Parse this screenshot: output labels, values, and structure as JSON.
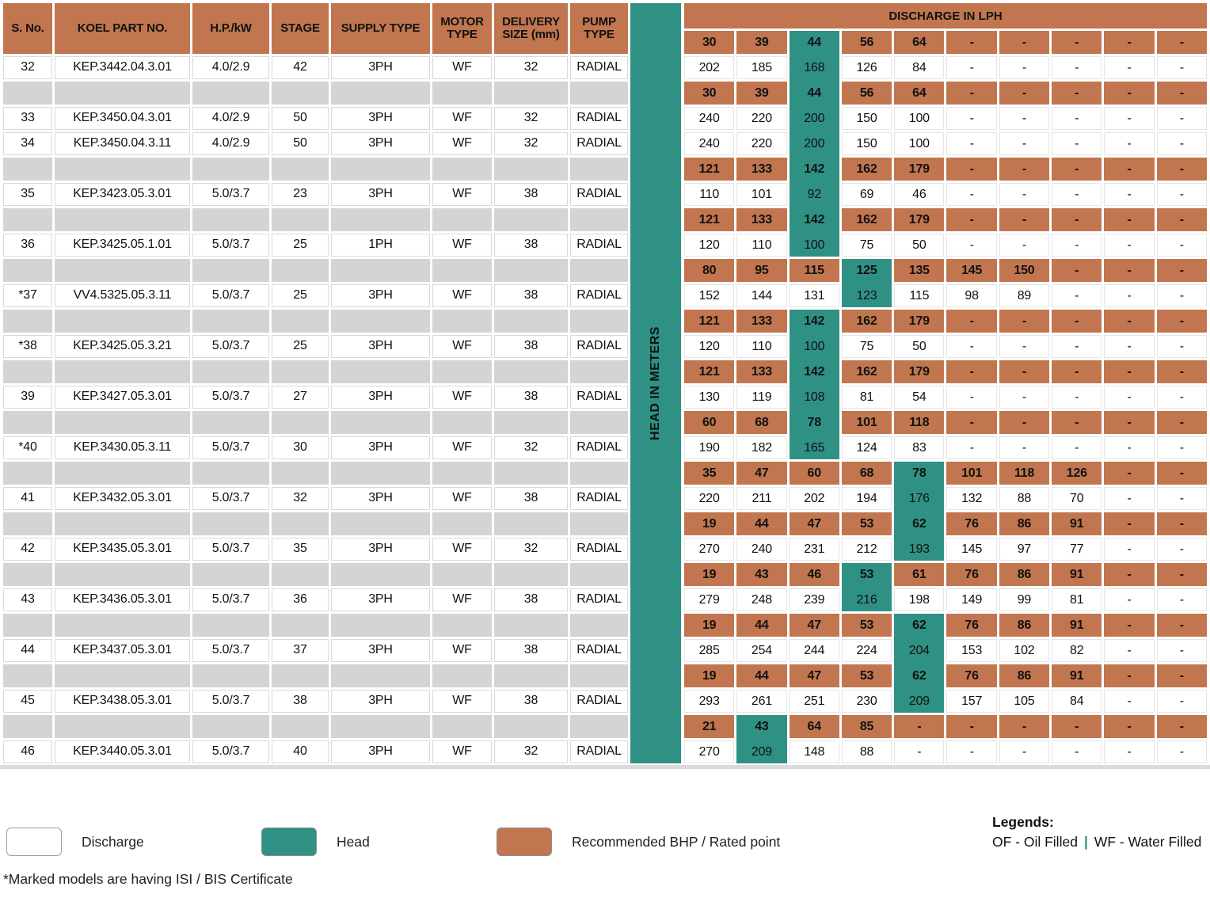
{
  "table": {
    "left_headers": [
      "S. No.",
      "KOEL PART NO.",
      "H.P./kW",
      "STAGE",
      "SUPPLY TYPE",
      "MOTOR TYPE",
      "DELIVERY SIZE (mm)",
      "PUMP TYPE"
    ],
    "discharge_title": "DISCHARGE IN LPH",
    "head_band_label": "HEAD IN METERS",
    "header_head_row": {
      "type": "head",
      "values": [
        "30",
        "39",
        "44",
        "56",
        "64",
        "-",
        "-",
        "-",
        "-",
        "-"
      ],
      "rated": 2
    },
    "rows": [
      {
        "left": {
          "sno": "32",
          "part": "KEP.3442.04.3.01",
          "hp": "4.0/2.9",
          "stage": "42",
          "supply": "3PH",
          "motor": "WF",
          "size": "32",
          "pump": "RADIAL"
        },
        "right": {
          "type": "disc",
          "values": [
            "202",
            "185",
            "168",
            "126",
            "84",
            "-",
            "-",
            "-",
            "-",
            "-"
          ],
          "rated": 2
        }
      },
      {
        "left": null,
        "right": {
          "type": "head",
          "values": [
            "30",
            "39",
            "44",
            "56",
            "64",
            "-",
            "-",
            "-",
            "-",
            "-"
          ],
          "rated": 2
        }
      },
      {
        "left": {
          "sno": "33",
          "part": "KEP.3450.04.3.01",
          "hp": "4.0/2.9",
          "stage": "50",
          "supply": "3PH",
          "motor": "WF",
          "size": "32",
          "pump": "RADIAL"
        },
        "right": {
          "type": "disc",
          "values": [
            "240",
            "220",
            "200",
            "150",
            "100",
            "-",
            "-",
            "-",
            "-",
            "-"
          ],
          "rated": 2
        }
      },
      {
        "left": {
          "sno": "34",
          "part": "KEP.3450.04.3.11",
          "hp": "4.0/2.9",
          "stage": "50",
          "supply": "3PH",
          "motor": "WF",
          "size": "32",
          "pump": "RADIAL"
        },
        "right": {
          "type": "disc",
          "values": [
            "240",
            "220",
            "200",
            "150",
            "100",
            "-",
            "-",
            "-",
            "-",
            "-"
          ],
          "rated": 2
        }
      },
      {
        "left": null,
        "right": {
          "type": "head",
          "values": [
            "121",
            "133",
            "142",
            "162",
            "179",
            "-",
            "-",
            "-",
            "-",
            "-"
          ],
          "rated": 2
        }
      },
      {
        "left": {
          "sno": "35",
          "part": "KEP.3423.05.3.01",
          "hp": "5.0/3.7",
          "stage": "23",
          "supply": "3PH",
          "motor": "WF",
          "size": "38",
          "pump": "RADIAL"
        },
        "right": {
          "type": "disc",
          "values": [
            "110",
            "101",
            "92",
            "69",
            "46",
            "-",
            "-",
            "-",
            "-",
            "-"
          ],
          "rated": 2
        }
      },
      {
        "left": null,
        "right": {
          "type": "head",
          "values": [
            "121",
            "133",
            "142",
            "162",
            "179",
            "-",
            "-",
            "-",
            "-",
            "-"
          ],
          "rated": 2
        }
      },
      {
        "left": {
          "sno": "36",
          "part": "KEP.3425.05.1.01",
          "hp": "5.0/3.7",
          "stage": "25",
          "supply": "1PH",
          "motor": "WF",
          "size": "38",
          "pump": "RADIAL"
        },
        "right": {
          "type": "disc",
          "values": [
            "120",
            "110",
            "100",
            "75",
            "50",
            "-",
            "-",
            "-",
            "-",
            "-"
          ],
          "rated": 2
        }
      },
      {
        "left": null,
        "right": {
          "type": "head",
          "values": [
            "80",
            "95",
            "115",
            "125",
            "135",
            "145",
            "150",
            "-",
            "-",
            "-"
          ],
          "rated": 3
        }
      },
      {
        "left": {
          "sno": "*37",
          "part": "VV4.5325.05.3.11",
          "hp": "5.0/3.7",
          "stage": "25",
          "supply": "3PH",
          "motor": "WF",
          "size": "38",
          "pump": "RADIAL"
        },
        "right": {
          "type": "disc",
          "values": [
            "152",
            "144",
            "131",
            "123",
            "115",
            "98",
            "89",
            "-",
            "-",
            "-"
          ],
          "rated": 3
        }
      },
      {
        "left": null,
        "right": {
          "type": "head",
          "values": [
            "121",
            "133",
            "142",
            "162",
            "179",
            "-",
            "-",
            "-",
            "-",
            "-"
          ],
          "rated": 2
        }
      },
      {
        "left": {
          "sno": "*38",
          "part": "KEP.3425.05.3.21",
          "hp": "5.0/3.7",
          "stage": "25",
          "supply": "3PH",
          "motor": "WF",
          "size": "38",
          "pump": "RADIAL"
        },
        "right": {
          "type": "disc",
          "values": [
            "120",
            "110",
            "100",
            "75",
            "50",
            "-",
            "-",
            "-",
            "-",
            "-"
          ],
          "rated": 2
        }
      },
      {
        "left": null,
        "right": {
          "type": "head",
          "values": [
            "121",
            "133",
            "142",
            "162",
            "179",
            "-",
            "-",
            "-",
            "-",
            "-"
          ],
          "rated": 2
        }
      },
      {
        "left": {
          "sno": "39",
          "part": "KEP.3427.05.3.01",
          "hp": "5.0/3.7",
          "stage": "27",
          "supply": "3PH",
          "motor": "WF",
          "size": "38",
          "pump": "RADIAL"
        },
        "right": {
          "type": "disc",
          "values": [
            "130",
            "119",
            "108",
            "81",
            "54",
            "-",
            "-",
            "-",
            "-",
            "-"
          ],
          "rated": 2
        }
      },
      {
        "left": null,
        "right": {
          "type": "head",
          "values": [
            "60",
            "68",
            "78",
            "101",
            "118",
            "-",
            "-",
            "-",
            "-",
            "-"
          ],
          "rated": 2
        }
      },
      {
        "left": {
          "sno": "*40",
          "part": "KEP.3430.05.3.11",
          "hp": "5.0/3.7",
          "stage": "30",
          "supply": "3PH",
          "motor": "WF",
          "size": "32",
          "pump": "RADIAL"
        },
        "right": {
          "type": "disc",
          "values": [
            "190",
            "182",
            "165",
            "124",
            "83",
            "-",
            "-",
            "-",
            "-",
            "-"
          ],
          "rated": 2
        }
      },
      {
        "left": null,
        "right": {
          "type": "head",
          "values": [
            "35",
            "47",
            "60",
            "68",
            "78",
            "101",
            "118",
            "126",
            "-",
            "-"
          ],
          "rated": 4
        }
      },
      {
        "left": {
          "sno": "41",
          "part": "KEP.3432.05.3.01",
          "hp": "5.0/3.7",
          "stage": "32",
          "supply": "3PH",
          "motor": "WF",
          "size": "38",
          "pump": "RADIAL"
        },
        "right": {
          "type": "disc",
          "values": [
            "220",
            "211",
            "202",
            "194",
            "176",
            "132",
            "88",
            "70",
            "-",
            "-"
          ],
          "rated": 4
        }
      },
      {
        "left": null,
        "right": {
          "type": "head",
          "values": [
            "19",
            "44",
            "47",
            "53",
            "62",
            "76",
            "86",
            "91",
            "-",
            "-"
          ],
          "rated": 4
        }
      },
      {
        "left": {
          "sno": "42",
          "part": "KEP.3435.05.3.01",
          "hp": "5.0/3.7",
          "stage": "35",
          "supply": "3PH",
          "motor": "WF",
          "size": "32",
          "pump": "RADIAL"
        },
        "right": {
          "type": "disc",
          "values": [
            "270",
            "240",
            "231",
            "212",
            "193",
            "145",
            "97",
            "77",
            "-",
            "-"
          ],
          "rated": 4
        }
      },
      {
        "left": null,
        "right": {
          "type": "head",
          "values": [
            "19",
            "43",
            "46",
            "53",
            "61",
            "76",
            "86",
            "91",
            "-",
            "-"
          ],
          "rated": 3
        }
      },
      {
        "left": {
          "sno": "43",
          "part": "KEP.3436.05.3.01",
          "hp": "5.0/3.7",
          "stage": "36",
          "supply": "3PH",
          "motor": "WF",
          "size": "38",
          "pump": "RADIAL"
        },
        "right": {
          "type": "disc",
          "values": [
            "279",
            "248",
            "239",
            "216",
            "198",
            "149",
            "99",
            "81",
            "-",
            "-"
          ],
          "rated": 3
        }
      },
      {
        "left": null,
        "right": {
          "type": "head",
          "values": [
            "19",
            "44",
            "47",
            "53",
            "62",
            "76",
            "86",
            "91",
            "-",
            "-"
          ],
          "rated": 4
        }
      },
      {
        "left": {
          "sno": "44",
          "part": "KEP.3437.05.3.01",
          "hp": "5.0/3.7",
          "stage": "37",
          "supply": "3PH",
          "motor": "WF",
          "size": "38",
          "pump": "RADIAL"
        },
        "right": {
          "type": "disc",
          "values": [
            "285",
            "254",
            "244",
            "224",
            "204",
            "153",
            "102",
            "82",
            "-",
            "-"
          ],
          "rated": 4
        }
      },
      {
        "left": null,
        "right": {
          "type": "head",
          "values": [
            "19",
            "44",
            "47",
            "53",
            "62",
            "76",
            "86",
            "91",
            "-",
            "-"
          ],
          "rated": 4
        }
      },
      {
        "left": {
          "sno": "45",
          "part": "KEP.3438.05.3.01",
          "hp": "5.0/3.7",
          "stage": "38",
          "supply": "3PH",
          "motor": "WF",
          "size": "38",
          "pump": "RADIAL"
        },
        "right": {
          "type": "disc",
          "values": [
            "293",
            "261",
            "251",
            "230",
            "209",
            "157",
            "105",
            "84",
            "-",
            "-"
          ],
          "rated": 4
        }
      },
      {
        "left": null,
        "right": {
          "type": "head",
          "values": [
            "21",
            "43",
            "64",
            "85",
            "-",
            "-",
            "-",
            "-",
            "-",
            "-"
          ],
          "rated": 1
        }
      },
      {
        "left": {
          "sno": "46",
          "part": "KEP.3440.05.3.01",
          "hp": "5.0/3.7",
          "stage": "40",
          "supply": "3PH",
          "motor": "WF",
          "size": "32",
          "pump": "RADIAL"
        },
        "right": {
          "type": "disc",
          "values": [
            "270",
            "209",
            "148",
            "88",
            "-",
            "-",
            "-",
            "-",
            "-",
            "-"
          ],
          "rated": 1
        }
      }
    ]
  },
  "legend": {
    "items": [
      {
        "swatch": "white",
        "label": "Discharge"
      },
      {
        "swatch": "green",
        "label": "Head"
      },
      {
        "swatch": "orange",
        "label": "Recommended BHP / Rated point"
      }
    ],
    "legends_title": "Legends:",
    "of_label": "OF  - Oil Filled",
    "separator": "|",
    "wf_label": "WF - Water Filled"
  },
  "footnote": "*Marked models are having ISI / BIS Certificate",
  "colors": {
    "orange": "#C1764F",
    "green": "#2F9183",
    "gray": "#D4D4D4"
  }
}
